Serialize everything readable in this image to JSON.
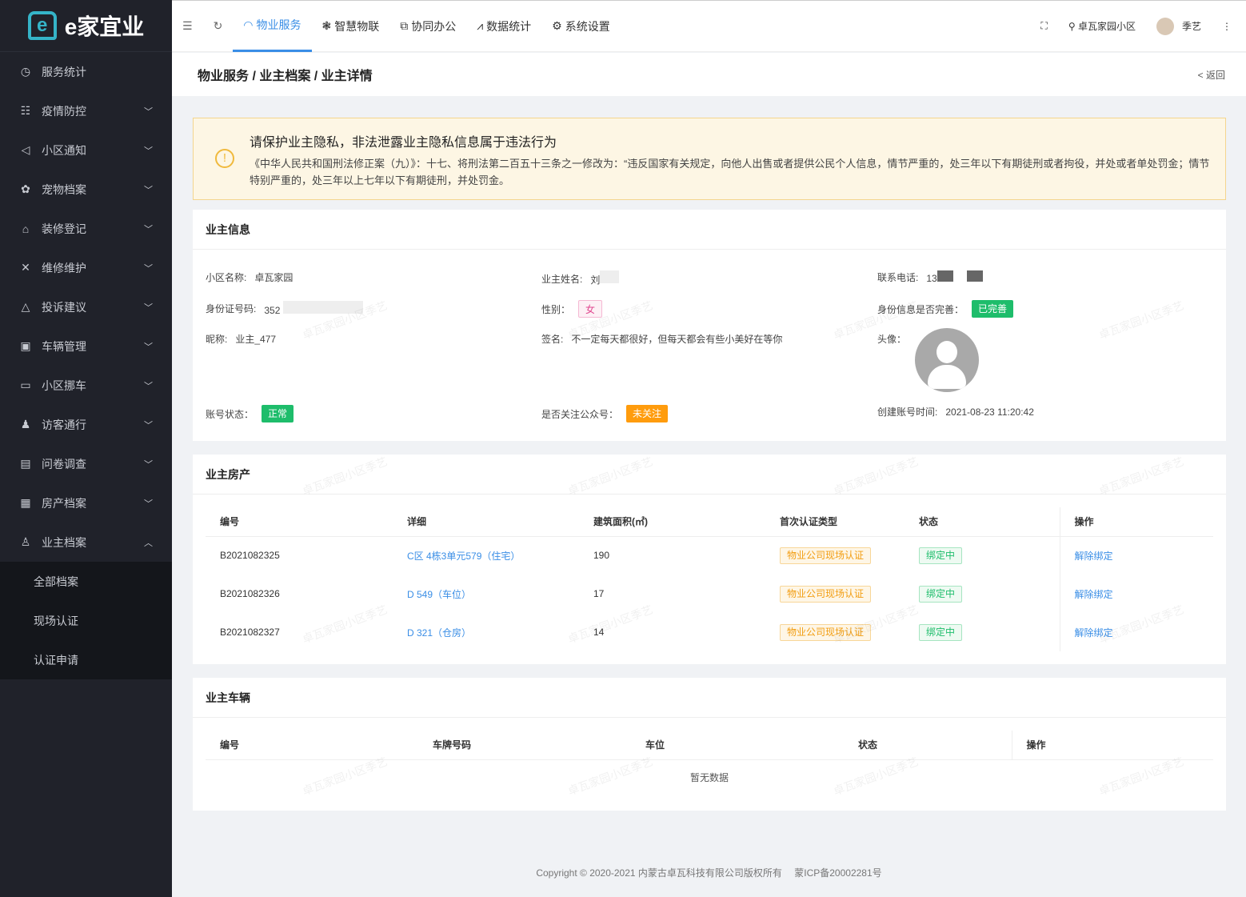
{
  "app": {
    "logo_mark": "e",
    "logo_text": "e家宜业"
  },
  "sidebar": {
    "items": [
      {
        "label": "服务统计",
        "icon": "gauge-icon",
        "glyph": "◷"
      },
      {
        "label": "疫情防控",
        "icon": "clipboard-icon",
        "glyph": "☷"
      },
      {
        "label": "小区通知",
        "icon": "megaphone-icon",
        "glyph": "◁"
      },
      {
        "label": "宠物档案",
        "icon": "pet-icon",
        "glyph": "✿"
      },
      {
        "label": "装修登记",
        "icon": "house-icon",
        "glyph": "⌂"
      },
      {
        "label": "维修维护",
        "icon": "tools-icon",
        "glyph": "✕"
      },
      {
        "label": "投诉建议",
        "icon": "complaint-icon",
        "glyph": "△"
      },
      {
        "label": "车辆管理",
        "icon": "vehicle-icon",
        "glyph": "▣"
      },
      {
        "label": "小区挪车",
        "icon": "car-icon",
        "glyph": "▭"
      },
      {
        "label": "访客通行",
        "icon": "visitor-icon",
        "glyph": "♟"
      },
      {
        "label": "问卷调查",
        "icon": "survey-icon",
        "glyph": "▤"
      },
      {
        "label": "房产档案",
        "icon": "building-icon",
        "glyph": "▦"
      },
      {
        "label": "业主档案",
        "icon": "user-icon",
        "glyph": "♙"
      }
    ],
    "sub_items": [
      "全部档案",
      "现场认证",
      "认证申请"
    ]
  },
  "topbar": {
    "tabs": [
      {
        "label": "物业服务",
        "glyph": "◠"
      },
      {
        "label": "智慧物联",
        "glyph": "❃"
      },
      {
        "label": "协同办公",
        "glyph": "⧉"
      },
      {
        "label": "数据统计",
        "glyph": "⩘"
      },
      {
        "label": "系统设置",
        "glyph": "⚙"
      }
    ],
    "community": "卓瓦家园小区",
    "user": "季艺"
  },
  "breadcrumb": "物业服务 / 业主档案 / 业主详情",
  "back_label": "< 返回",
  "alert": {
    "title": "请保护业主隐私，非法泄露业主隐私信息属于违法行为",
    "body": "《中华人民共和国刑法修正案（九）》：十七、将刑法第二百五十三条之一修改为：“违反国家有关规定，向他人出售或者提供公民个人信息，情节严重的，处三年以下有期徒刑或者拘役，并处或者单处罚金；情节特别严重的，处三年以上七年以下有期徒刑，并处罚金。"
  },
  "owner_info": {
    "title": "业主信息",
    "community_label": "小区名称:",
    "community": "卓瓦家园",
    "name_label": "业主姓名:",
    "name": "刘",
    "phone_label": "联系电话:",
    "phone": "13",
    "id_label": "身份证号码:",
    "id": "352",
    "gender_label": "性别：",
    "gender": "女",
    "id_complete_label": "身份信息是否完善：",
    "id_complete": "已完善",
    "nickname_label": "昵称:",
    "nickname": "业主_477",
    "signature_label": "签名:",
    "signature": "不一定每天都很好，但每天都会有些小美好在等你",
    "avatar_label": "头像：",
    "status_label": "账号状态：",
    "status": "正常",
    "follow_label": "是否关注公众号：",
    "follow": "未关注",
    "created_label": "创建账号时间:",
    "created": "2021-08-23 11:20:42"
  },
  "property": {
    "title": "业主房产",
    "columns": [
      "编号",
      "详细",
      "建筑面积(㎡)",
      "首次认证类型",
      "状态",
      "操作"
    ],
    "rows": [
      {
        "id": "B2021082325",
        "detail": "C区 4栋3单元579（住宅）",
        "area": "190",
        "auth": "物业公司现场认证",
        "status": "绑定中",
        "action": "解除绑定"
      },
      {
        "id": "B2021082326",
        "detail": "D 549（车位）",
        "area": "17",
        "auth": "物业公司现场认证",
        "status": "绑定中",
        "action": "解除绑定"
      },
      {
        "id": "B2021082327",
        "detail": "D 321（仓房）",
        "area": "14",
        "auth": "物业公司现场认证",
        "status": "绑定中",
        "action": "解除绑定"
      }
    ]
  },
  "vehicles": {
    "title": "业主车辆",
    "columns": [
      "编号",
      "车牌号码",
      "车位",
      "状态",
      "操作"
    ],
    "empty": "暂无数据"
  },
  "watermark": "卓瓦家园小区季艺",
  "footer": "Copyright © 2020-2021 内蒙古卓瓦科技有限公司版权所有　 蒙ICP备20002281号"
}
